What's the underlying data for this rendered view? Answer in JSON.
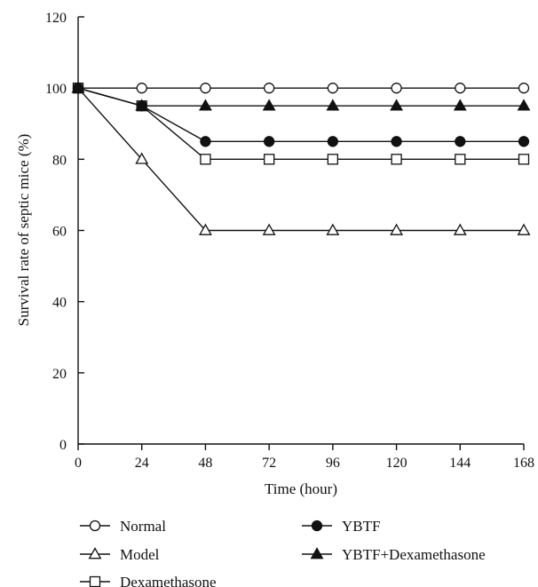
{
  "chart_data": {
    "type": "line",
    "xlabel": "Time (hour)",
    "ylabel": "Survival rate of septic mice (%)",
    "x": [
      0,
      24,
      48,
      72,
      96,
      120,
      144,
      168
    ],
    "xticks": [
      "0",
      "24",
      "48",
      "72",
      "96",
      "120",
      "144",
      "168"
    ],
    "yticks": [
      "0",
      "20",
      "40",
      "60",
      "80",
      "100",
      "120"
    ],
    "xlim": [
      0,
      168
    ],
    "ylim": [
      0,
      120
    ],
    "grid": false,
    "legend_position": "bottom",
    "series": [
      {
        "name": "Normal",
        "marker": "circle-open",
        "values": [
          100,
          100,
          100,
          100,
          100,
          100,
          100,
          100
        ]
      },
      {
        "name": "Model",
        "marker": "triangle-open",
        "values": [
          100,
          80,
          60,
          60,
          60,
          60,
          60,
          60
        ]
      },
      {
        "name": "Dexamethasone",
        "marker": "square-open",
        "values": [
          100,
          95,
          80,
          80,
          80,
          80,
          80,
          80
        ]
      },
      {
        "name": "YBTF",
        "marker": "circle-filled",
        "values": [
          100,
          95,
          85,
          85,
          85,
          85,
          85,
          85
        ]
      },
      {
        "name": "YBTF+Dexamethasone",
        "marker": "triangle-filled",
        "values": [
          100,
          95,
          95,
          95,
          95,
          95,
          95,
          95
        ]
      }
    ],
    "colors": {
      "line": "#111111",
      "background": "#ffffff"
    }
  }
}
